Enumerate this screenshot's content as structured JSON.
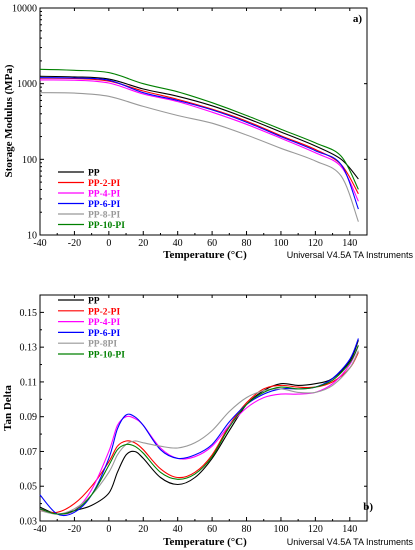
{
  "watermark": "Universal V4.5A TA Instruments",
  "chart_data": [
    {
      "type": "line",
      "panel_label": "a)",
      "xlabel": "Temperature (°C)",
      "ylabel": "Storage Modulus (MPa)",
      "xlim": [
        -40,
        150
      ],
      "ylim": [
        10,
        10000
      ],
      "yscale": "log",
      "x_ticks": [
        -40,
        -20,
        0,
        20,
        40,
        60,
        80,
        100,
        120,
        140
      ],
      "y_ticks": [
        10,
        100,
        1000,
        10000
      ],
      "legend_position": "bottom-left",
      "series": [
        {
          "name": "PP",
          "color": "#000000",
          "x": [
            -40,
            -20,
            0,
            20,
            40,
            60,
            80,
            100,
            120,
            135,
            145
          ],
          "y": [
            1250,
            1230,
            1150,
            850,
            680,
            510,
            350,
            230,
            150,
            100,
            55
          ]
        },
        {
          "name": "PP-2-PI",
          "color": "#ff0000",
          "x": [
            -40,
            -20,
            0,
            20,
            40,
            60,
            80,
            100,
            120,
            135,
            145
          ],
          "y": [
            1180,
            1170,
            1080,
            800,
            620,
            460,
            320,
            205,
            135,
            85,
            35
          ]
        },
        {
          "name": "PP-4-PI",
          "color": "#ff00ff",
          "x": [
            -40,
            -20,
            0,
            20,
            40,
            60,
            80,
            100,
            120,
            135,
            145
          ],
          "y": [
            1120,
            1110,
            1020,
            730,
            580,
            420,
            290,
            190,
            122,
            80,
            28
          ]
        },
        {
          "name": "PP-6-PI",
          "color": "#0000ff",
          "x": [
            -40,
            -20,
            0,
            20,
            40,
            60,
            80,
            100,
            120,
            135,
            145
          ],
          "y": [
            1200,
            1190,
            1110,
            760,
            600,
            450,
            310,
            200,
            130,
            85,
            22
          ]
        },
        {
          "name": "PP-8-PI",
          "color": "#999999",
          "x": [
            -40,
            -20,
            0,
            20,
            40,
            60,
            80,
            100,
            120,
            135,
            145
          ],
          "y": [
            760,
            750,
            680,
            500,
            380,
            300,
            210,
            140,
            95,
            60,
            15
          ]
        },
        {
          "name": "PP-10-PI",
          "color": "#008000",
          "x": [
            -40,
            -20,
            0,
            20,
            40,
            60,
            80,
            100,
            120,
            135,
            145
          ],
          "y": [
            1550,
            1500,
            1400,
            1000,
            780,
            560,
            380,
            250,
            165,
            110,
            40
          ]
        }
      ]
    },
    {
      "type": "line",
      "panel_label": "b)",
      "xlabel": "Temperature (°C)",
      "ylabel": "Tan Delta",
      "xlim": [
        -40,
        150
      ],
      "ylim": [
        0.03,
        0.16
      ],
      "x_ticks": [
        -40,
        -20,
        0,
        20,
        40,
        60,
        80,
        100,
        120,
        140
      ],
      "y_ticks": [
        0.03,
        0.05,
        0.07,
        0.09,
        0.11,
        0.13,
        0.15
      ],
      "y_tick_labels": [
        "0.03",
        "0.05",
        "0.07",
        "0.09",
        "0.11",
        "0.13",
        "0.15"
      ],
      "legend_position": "top-left",
      "series": [
        {
          "name": "PP",
          "color": "#000000",
          "x": [
            -40,
            -30,
            -20,
            -10,
            0,
            5,
            10,
            15,
            20,
            30,
            40,
            50,
            60,
            70,
            80,
            90,
            100,
            110,
            120,
            130,
            140,
            145
          ],
          "y": [
            0.038,
            0.034,
            0.036,
            0.039,
            0.046,
            0.058,
            0.068,
            0.07,
            0.066,
            0.055,
            0.051,
            0.055,
            0.066,
            0.082,
            0.097,
            0.105,
            0.109,
            0.108,
            0.109,
            0.112,
            0.122,
            0.134
          ]
        },
        {
          "name": "PP-2-PI",
          "color": "#ff0000",
          "x": [
            -40,
            -30,
            -20,
            -10,
            0,
            5,
            10,
            15,
            20,
            30,
            40,
            50,
            60,
            70,
            80,
            90,
            100,
            110,
            120,
            130,
            140,
            145
          ],
          "y": [
            0.036,
            0.035,
            0.04,
            0.05,
            0.064,
            0.073,
            0.076,
            0.075,
            0.071,
            0.06,
            0.055,
            0.058,
            0.068,
            0.085,
            0.098,
            0.106,
            0.108,
            0.107,
            0.107,
            0.11,
            0.118,
            0.127
          ]
        },
        {
          "name": "PP-4-PI",
          "color": "#ff00ff",
          "x": [
            -40,
            -30,
            -20,
            -10,
            0,
            5,
            10,
            15,
            20,
            30,
            40,
            50,
            60,
            70,
            80,
            90,
            100,
            110,
            120,
            130,
            140,
            145
          ],
          "y": [
            0.037,
            0.034,
            0.036,
            0.048,
            0.07,
            0.085,
            0.09,
            0.089,
            0.085,
            0.072,
            0.066,
            0.067,
            0.073,
            0.085,
            0.095,
            0.101,
            0.103,
            0.103,
            0.104,
            0.109,
            0.12,
            0.131
          ]
        },
        {
          "name": "PP-6-PI",
          "color": "#0000ff",
          "x": [
            -40,
            -30,
            -20,
            -10,
            0,
            5,
            10,
            15,
            20,
            30,
            40,
            50,
            60,
            70,
            80,
            90,
            100,
            110,
            120,
            130,
            140,
            145
          ],
          "y": [
            0.045,
            0.034,
            0.035,
            0.045,
            0.066,
            0.083,
            0.091,
            0.09,
            0.085,
            0.071,
            0.066,
            0.068,
            0.074,
            0.087,
            0.097,
            0.103,
            0.106,
            0.106,
            0.107,
            0.112,
            0.123,
            0.135
          ]
        },
        {
          "name": "PP-8PI",
          "color": "#999999",
          "x": [
            -40,
            -30,
            -20,
            -10,
            0,
            5,
            10,
            15,
            20,
            30,
            40,
            50,
            60,
            70,
            80,
            90,
            100,
            110,
            120,
            130,
            140,
            145
          ],
          "y": [
            0.036,
            0.034,
            0.037,
            0.045,
            0.058,
            0.068,
            0.074,
            0.076,
            0.075,
            0.073,
            0.072,
            0.075,
            0.082,
            0.093,
            0.101,
            0.105,
            0.106,
            0.104,
            0.104,
            0.108,
            0.118,
            0.128
          ]
        },
        {
          "name": "PP-10-PI",
          "color": "#008000",
          "x": [
            -40,
            -30,
            -20,
            -10,
            0,
            5,
            10,
            15,
            20,
            30,
            40,
            50,
            60,
            70,
            80,
            90,
            100,
            110,
            120,
            130,
            140,
            145
          ],
          "y": [
            0.037,
            0.034,
            0.036,
            0.045,
            0.062,
            0.071,
            0.074,
            0.073,
            0.069,
            0.058,
            0.054,
            0.057,
            0.067,
            0.084,
            0.097,
            0.104,
            0.107,
            0.106,
            0.107,
            0.111,
            0.121,
            0.131
          ]
        }
      ]
    }
  ]
}
